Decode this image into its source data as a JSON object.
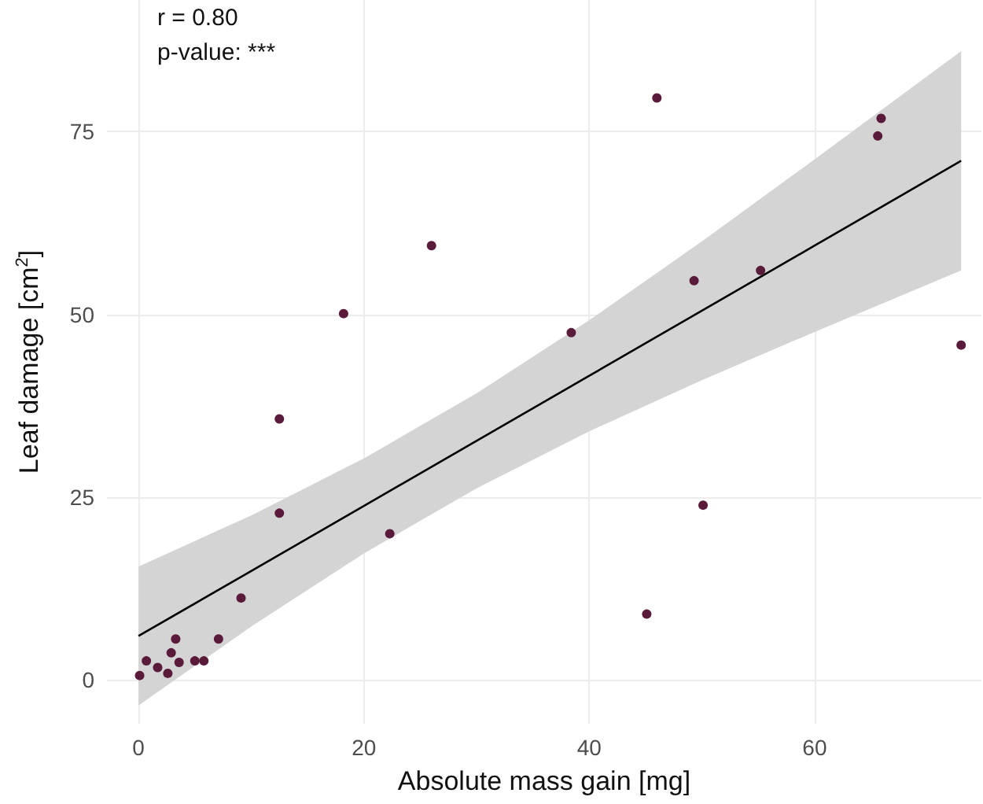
{
  "chart_data": {
    "type": "scatter",
    "xlabel": "Absolute mass gain [mg]",
    "ylabel": "Leaf damage [cm$^{2}$]",
    "annotations": [
      "r = 0.80",
      "p-value: ***"
    ],
    "xlim": [
      -2.8,
      74.8
    ],
    "ylim": [
      -6,
      93
    ],
    "xticks": [
      0,
      20,
      40,
      60
    ],
    "yticks": [
      0,
      25,
      50,
      75
    ],
    "grid": true,
    "series": [
      {
        "marker": "circle",
        "color": "#5a1a3a",
        "x": [
          0.1,
          0.7,
          1.7,
          2.6,
          2.9,
          3.3,
          3.6,
          5.0,
          5.8,
          7.1,
          9.1,
          12.5,
          12.5,
          18.2,
          22.3,
          26.0,
          38.4,
          45.1,
          46.0,
          49.3,
          50.1,
          55.2,
          65.6,
          65.9,
          73.0
        ],
        "values": [
          0.6,
          2.6,
          1.7,
          0.9,
          3.7,
          5.6,
          2.4,
          2.6,
          2.6,
          5.6,
          11.2,
          35.7,
          22.8,
          50.1,
          20.0,
          59.4,
          47.5,
          9.0,
          79.6,
          54.6,
          23.9,
          56.0,
          74.4,
          76.8,
          45.8
        ]
      },
      {
        "type": "line",
        "marker": "none",
        "color": "#000000",
        "line_style": "solid",
        "x": [
          0,
          10,
          20,
          30,
          40,
          50,
          60,
          73
        ],
        "values": [
          6.0,
          14.9,
          23.8,
          32.7,
          41.6,
          50.5,
          59.4,
          71.0
        ],
        "lower": [
          -3.5,
          7.3,
          17.3,
          26.2,
          34.0,
          41.0,
          47.6,
          56.0
        ],
        "upper": [
          15.5,
          22.5,
          30.3,
          39.2,
          49.2,
          60.0,
          71.2,
          86.0
        ]
      }
    ]
  }
}
